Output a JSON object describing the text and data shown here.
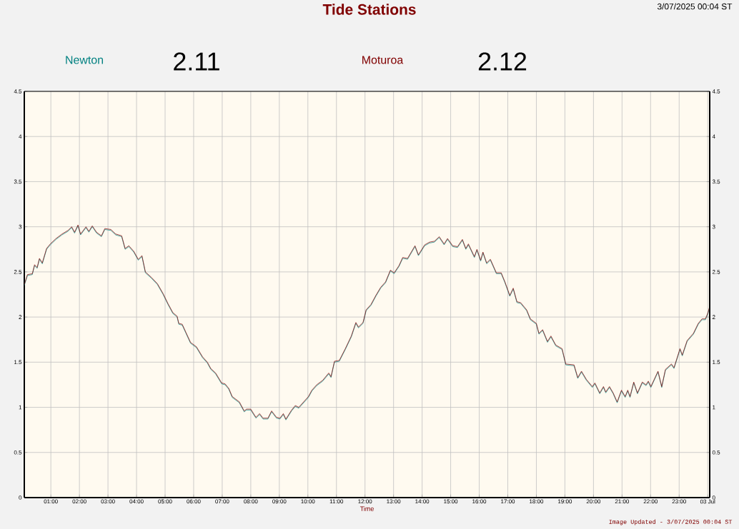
{
  "chart_data": {
    "type": "line",
    "title": "Tide Stations",
    "xlabel": "Time",
    "annotations": [
      "2.11",
      "2.12",
      "3/07/2025 00:04 ST",
      "Image Updated - 3/07/2025 00:04 ST"
    ],
    "x": [
      0.07,
      0.18,
      0.35,
      0.43,
      0.52,
      0.6,
      0.7,
      0.85,
      0.98,
      1.18,
      1.39,
      1.6,
      1.73,
      1.83,
      1.95,
      2.04,
      2.23,
      2.33,
      2.45,
      2.6,
      2.77,
      2.89,
      3.1,
      3.27,
      3.48,
      3.6,
      3.73,
      3.9,
      4.06,
      4.19,
      4.31,
      4.52,
      4.73,
      4.93,
      5.1,
      5.27,
      5.42,
      5.48,
      5.6,
      5.73,
      5.89,
      6.1,
      6.31,
      6.48,
      6.6,
      6.77,
      6.98,
      7.1,
      7.23,
      7.35,
      7.6,
      7.77,
      7.85,
      8.0,
      8.18,
      8.31,
      8.43,
      8.6,
      8.73,
      8.9,
      9.02,
      9.14,
      9.23,
      9.43,
      9.56,
      9.68,
      9.85,
      10.02,
      10.14,
      10.31,
      10.52,
      10.73,
      10.81,
      10.93,
      11.1,
      11.31,
      11.52,
      11.68,
      11.77,
      11.93,
      12.04,
      12.21,
      12.38,
      12.55,
      12.72,
      12.89,
      13.02,
      13.19,
      13.32,
      13.49,
      13.75,
      13.87,
      14.09,
      14.26,
      14.43,
      14.6,
      14.77,
      14.89,
      15.07,
      15.24,
      15.41,
      15.53,
      15.62,
      15.83,
      15.92,
      16.05,
      16.13,
      16.26,
      16.39,
      16.6,
      16.77,
      16.9,
      17.07,
      17.19,
      17.32,
      17.45,
      17.66,
      17.79,
      18.0,
      18.09,
      18.22,
      18.39,
      18.51,
      18.68,
      18.9,
      19.03,
      19.32,
      19.45,
      19.58,
      19.75,
      19.96,
      20.05,
      20.22,
      20.35,
      20.43,
      20.56,
      20.69,
      20.83,
      20.98,
      21.11,
      21.2,
      21.28,
      21.41,
      21.54,
      21.71,
      21.84,
      21.92,
      22.01,
      22.26,
      22.39,
      22.52,
      22.73,
      22.82,
      23.03,
      23.11,
      23.28,
      23.5,
      23.67,
      23.8,
      23.92,
      24.01,
      24.07
    ],
    "series": [
      {
        "name": "Newton",
        "color": "#008080",
        "values": [
          2.35,
          2.46,
          2.47,
          2.57,
          2.54,
          2.64,
          2.59,
          2.75,
          2.8,
          2.86,
          2.91,
          2.95,
          2.99,
          2.93,
          3.01,
          2.91,
          2.99,
          2.94,
          3.0,
          2.93,
          2.89,
          2.97,
          2.96,
          2.91,
          2.89,
          2.75,
          2.78,
          2.72,
          2.63,
          2.67,
          2.49,
          2.43,
          2.36,
          2.25,
          2.14,
          2.04,
          2.0,
          1.92,
          1.91,
          1.82,
          1.71,
          1.66,
          1.55,
          1.49,
          1.42,
          1.37,
          1.26,
          1.25,
          1.2,
          1.11,
          1.05,
          0.95,
          0.97,
          0.97,
          0.88,
          0.92,
          0.87,
          0.87,
          0.95,
          0.88,
          0.87,
          0.92,
          0.86,
          0.96,
          1.01,
          0.99,
          1.05,
          1.11,
          1.18,
          1.24,
          1.29,
          1.37,
          1.33,
          1.5,
          1.51,
          1.64,
          1.78,
          1.93,
          1.88,
          1.93,
          2.07,
          2.13,
          2.23,
          2.32,
          2.38,
          2.51,
          2.48,
          2.56,
          2.65,
          2.64,
          2.78,
          2.68,
          2.79,
          2.82,
          2.83,
          2.88,
          2.8,
          2.86,
          2.78,
          2.77,
          2.85,
          2.75,
          2.8,
          2.66,
          2.74,
          2.62,
          2.71,
          2.59,
          2.63,
          2.48,
          2.48,
          2.38,
          2.23,
          2.31,
          2.16,
          2.15,
          2.07,
          1.97,
          1.92,
          1.81,
          1.85,
          1.72,
          1.78,
          1.68,
          1.64,
          1.47,
          1.46,
          1.32,
          1.39,
          1.3,
          1.22,
          1.26,
          1.15,
          1.22,
          1.16,
          1.22,
          1.15,
          1.05,
          1.18,
          1.11,
          1.18,
          1.11,
          1.27,
          1.15,
          1.27,
          1.24,
          1.28,
          1.22,
          1.39,
          1.22,
          1.41,
          1.47,
          1.43,
          1.64,
          1.57,
          1.73,
          1.81,
          1.92,
          1.97,
          1.97,
          2.04,
          2.11
        ]
      },
      {
        "name": "Moturoa",
        "color": "#800000",
        "values": [
          2.36,
          2.47,
          2.48,
          2.58,
          2.55,
          2.65,
          2.6,
          2.76,
          2.81,
          2.87,
          2.92,
          2.96,
          3.0,
          2.94,
          3.02,
          2.92,
          3.0,
          2.95,
          3.01,
          2.94,
          2.9,
          2.98,
          2.97,
          2.92,
          2.9,
          2.76,
          2.79,
          2.73,
          2.64,
          2.68,
          2.5,
          2.44,
          2.37,
          2.26,
          2.15,
          2.05,
          2.01,
          1.93,
          1.92,
          1.83,
          1.72,
          1.67,
          1.56,
          1.5,
          1.43,
          1.38,
          1.27,
          1.26,
          1.21,
          1.12,
          1.06,
          0.96,
          0.98,
          0.98,
          0.89,
          0.93,
          0.88,
          0.88,
          0.96,
          0.89,
          0.88,
          0.93,
          0.87,
          0.97,
          1.02,
          1.0,
          1.06,
          1.12,
          1.19,
          1.25,
          1.3,
          1.38,
          1.34,
          1.51,
          1.52,
          1.65,
          1.79,
          1.94,
          1.89,
          1.94,
          2.08,
          2.14,
          2.24,
          2.33,
          2.39,
          2.52,
          2.49,
          2.57,
          2.66,
          2.65,
          2.79,
          2.69,
          2.8,
          2.83,
          2.84,
          2.89,
          2.81,
          2.87,
          2.79,
          2.78,
          2.86,
          2.76,
          2.81,
          2.67,
          2.75,
          2.63,
          2.72,
          2.6,
          2.64,
          2.49,
          2.49,
          2.39,
          2.24,
          2.32,
          2.17,
          2.16,
          2.08,
          1.98,
          1.93,
          1.82,
          1.86,
          1.73,
          1.79,
          1.69,
          1.65,
          1.48,
          1.47,
          1.33,
          1.4,
          1.31,
          1.23,
          1.27,
          1.16,
          1.23,
          1.17,
          1.23,
          1.16,
          1.06,
          1.19,
          1.12,
          1.19,
          1.12,
          1.28,
          1.16,
          1.28,
          1.25,
          1.29,
          1.23,
          1.4,
          1.23,
          1.42,
          1.48,
          1.44,
          1.65,
          1.58,
          1.74,
          1.82,
          1.93,
          1.98,
          1.98,
          2.05,
          2.12
        ]
      }
    ],
    "xlim": [
      0.07,
      24.07
    ],
    "ylim": [
      0,
      4.5
    ],
    "xticks": [
      {
        "value": 1,
        "label": "01:00"
      },
      {
        "value": 2,
        "label": "02:00"
      },
      {
        "value": 3,
        "label": "03:00"
      },
      {
        "value": 4,
        "label": "04:00"
      },
      {
        "value": 5,
        "label": "05:00"
      },
      {
        "value": 6,
        "label": "06:00"
      },
      {
        "value": 7,
        "label": "07:00"
      },
      {
        "value": 8,
        "label": "08:00"
      },
      {
        "value": 9,
        "label": "09:00"
      },
      {
        "value": 10,
        "label": "10:00"
      },
      {
        "value": 11,
        "label": "11:00"
      },
      {
        "value": 12,
        "label": "12:00"
      },
      {
        "value": 13,
        "label": "13:00"
      },
      {
        "value": 14,
        "label": "14:00"
      },
      {
        "value": 15,
        "label": "15:00"
      },
      {
        "value": 16,
        "label": "16:00"
      },
      {
        "value": 17,
        "label": "17:00"
      },
      {
        "value": 18,
        "label": "18:00"
      },
      {
        "value": 19,
        "label": "19:00"
      },
      {
        "value": 20,
        "label": "20:00"
      },
      {
        "value": 21,
        "label": "21:00"
      },
      {
        "value": 22,
        "label": "22:00"
      },
      {
        "value": 23,
        "label": "23:00"
      },
      {
        "value": 24,
        "label": "03 Jul"
      }
    ],
    "yticks": [
      0,
      0.5,
      1,
      1.5,
      2,
      2.5,
      3,
      3.5,
      4,
      4.5
    ],
    "y2lim": [
      0,
      4.5
    ],
    "y2ticks": [
      0,
      0.5,
      1,
      1.5,
      2,
      2.5,
      3,
      3.5,
      4,
      4.5
    ],
    "grid": true,
    "legend": "top"
  }
}
